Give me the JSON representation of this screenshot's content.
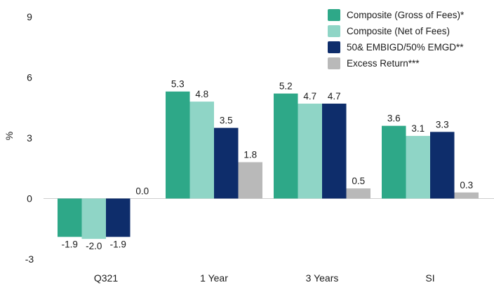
{
  "chart_data": {
    "type": "bar",
    "ylabel": "%",
    "ylim": [
      -3,
      9
    ],
    "yticks": [
      "9",
      "6",
      "3",
      "0",
      "-3"
    ],
    "ytick_values": [
      9,
      6,
      3,
      0,
      -3
    ],
    "categories": [
      "Q321",
      "1 Year",
      "3 Years",
      "SI"
    ],
    "series": [
      {
        "name": "Composite (Gross of Fees)*",
        "color": "#2ea888",
        "values": [
          -1.9,
          5.3,
          5.2,
          3.6
        ],
        "labels": [
          "-1.9",
          "5.3",
          "5.2",
          "3.6"
        ]
      },
      {
        "name": "Composite (Net of Fees)",
        "color": "#8fd5c6",
        "values": [
          -2.0,
          4.8,
          4.7,
          3.1
        ],
        "labels": [
          "-2.0",
          "4.8",
          "4.7",
          "3.1"
        ]
      },
      {
        "name": "50& EMBIGD/50% EMGD**",
        "color": "#0e2d6b",
        "values": [
          -1.9,
          3.5,
          4.7,
          3.3
        ],
        "labels": [
          "-1.9",
          "3.5",
          "4.7",
          "3.3"
        ]
      },
      {
        "name": "Excess Return***",
        "color": "#b9b9b9",
        "values": [
          0.0,
          1.8,
          0.5,
          0.3
        ],
        "labels": [
          "0.0",
          "1.8",
          "0.5",
          "0.3"
        ]
      }
    ],
    "grid": false,
    "legend_position": "top-right"
  }
}
